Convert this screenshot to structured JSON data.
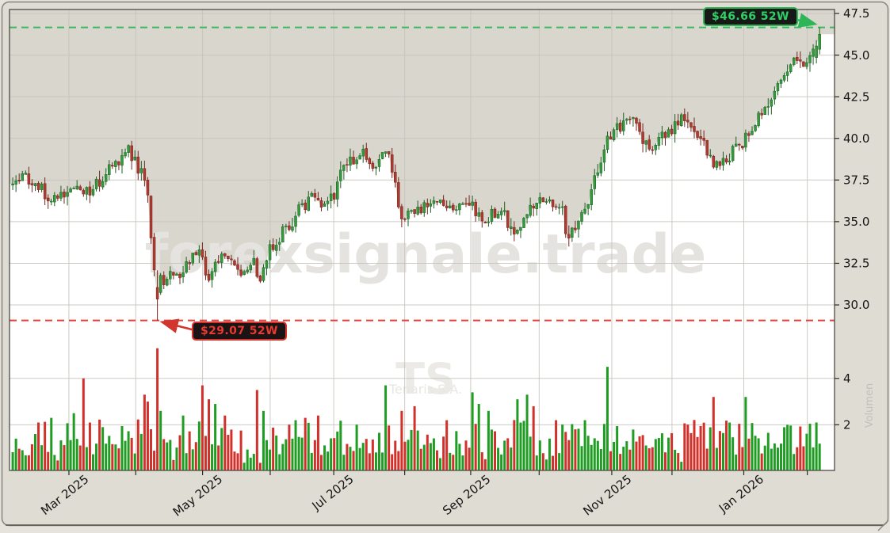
{
  "window": {
    "background": "#dfdcd4",
    "page_background": "#e6e3dc",
    "border_color": "#85837a",
    "plot_border_color": "#4d4b45"
  },
  "watermarks": {
    "site": "forexsignale.trade",
    "logo": "TS",
    "company": "Tenaris S.A."
  },
  "annotations": {
    "high": {
      "label": "$46.66 52W",
      "value": 46.66,
      "line_color": "#3cb95f",
      "text_color": "#2dd066"
    },
    "low": {
      "label": "$29.07 52W",
      "value": 29.07,
      "line_color": "#e2403a",
      "text_color": "#e73a30"
    }
  },
  "axes": {
    "price_ticks": [
      47.5,
      45.0,
      42.5,
      40.0,
      37.5,
      35.0,
      32.5,
      30.0
    ],
    "volume_ticks": [
      4,
      2
    ],
    "volume_axis_label": "Volumen",
    "x_ticks": [
      {
        "t": 0.072,
        "label": "Mar 2025"
      },
      {
        "t": 0.153,
        "label": ""
      },
      {
        "t": 0.234,
        "label": "May 2025"
      },
      {
        "t": 0.316,
        "label": ""
      },
      {
        "t": 0.393,
        "label": "Jul 2025"
      },
      {
        "t": 0.479,
        "label": ""
      },
      {
        "t": 0.559,
        "label": "Sep 2025"
      },
      {
        "t": 0.642,
        "label": ""
      },
      {
        "t": 0.73,
        "label": "Nov 2025"
      },
      {
        "t": 0.803,
        "label": ""
      },
      {
        "t": 0.89,
        "label": "Jan 2026"
      },
      {
        "t": 0.967,
        "label": ""
      }
    ]
  },
  "chart_data": {
    "type": "candlestick+volume",
    "instrument": "Tenaris S.A.",
    "title": "",
    "ylabel_volume": "Volumen",
    "price_ylim": [
      20.0,
      47.74
    ],
    "volume_ylim": [
      0,
      6
    ],
    "grid": true,
    "fifty_two_week": {
      "high": 46.66,
      "low": 29.07
    },
    "n_candles": 252,
    "seed": 42,
    "price_path": [
      [
        0.002,
        37.2
      ],
      [
        0.014,
        37.9
      ],
      [
        0.028,
        37.4
      ],
      [
        0.044,
        36.6
      ],
      [
        0.058,
        36.3
      ],
      [
        0.074,
        37.1
      ],
      [
        0.088,
        36.7
      ],
      [
        0.104,
        37.4
      ],
      [
        0.124,
        38.3
      ],
      [
        0.136,
        39.1
      ],
      [
        0.142,
        39.3
      ],
      [
        0.154,
        38.2
      ],
      [
        0.162,
        37.6
      ],
      [
        0.168,
        35.3
      ],
      [
        0.172,
        32.3
      ],
      [
        0.176,
        30.6
      ],
      [
        0.181,
        31.8
      ],
      [
        0.186,
        30.9
      ],
      [
        0.192,
        32.3
      ],
      [
        0.2,
        31.7
      ],
      [
        0.21,
        32.4
      ],
      [
        0.222,
        33.2
      ],
      [
        0.232,
        32.7
      ],
      [
        0.238,
        30.9
      ],
      [
        0.245,
        32.1
      ],
      [
        0.26,
        32.9
      ],
      [
        0.27,
        32.4
      ],
      [
        0.285,
        31.9
      ],
      [
        0.295,
        32.6
      ],
      [
        0.302,
        31.4
      ],
      [
        0.315,
        33.5
      ],
      [
        0.325,
        34.0
      ],
      [
        0.34,
        35.0
      ],
      [
        0.355,
        36.0
      ],
      [
        0.363,
        36.7
      ],
      [
        0.378,
        35.9
      ],
      [
        0.39,
        36.6
      ],
      [
        0.405,
        38.3
      ],
      [
        0.418,
        38.9
      ],
      [
        0.428,
        39.1
      ],
      [
        0.438,
        38.1
      ],
      [
        0.45,
        38.8
      ],
      [
        0.457,
        39.0
      ],
      [
        0.465,
        37.5
      ],
      [
        0.472,
        34.9
      ],
      [
        0.48,
        35.3
      ],
      [
        0.495,
        35.6
      ],
      [
        0.51,
        36.1
      ],
      [
        0.522,
        36.4
      ],
      [
        0.535,
        35.7
      ],
      [
        0.545,
        36.2
      ],
      [
        0.558,
        35.9
      ],
      [
        0.572,
        34.8
      ],
      [
        0.582,
        35.3
      ],
      [
        0.595,
        35.6
      ],
      [
        0.607,
        34.7
      ],
      [
        0.617,
        34.3
      ],
      [
        0.63,
        35.8
      ],
      [
        0.643,
        36.3
      ],
      [
        0.658,
        36.0
      ],
      [
        0.668,
        35.9
      ],
      [
        0.672,
        34.3
      ],
      [
        0.678,
        34.0
      ],
      [
        0.688,
        35.2
      ],
      [
        0.7,
        36.5
      ],
      [
        0.715,
        38.6
      ],
      [
        0.725,
        40.1
      ],
      [
        0.738,
        40.6
      ],
      [
        0.748,
        41.2
      ],
      [
        0.758,
        40.6
      ],
      [
        0.77,
        39.8
      ],
      [
        0.776,
        39.3
      ],
      [
        0.788,
        40.2
      ],
      [
        0.8,
        40.6
      ],
      [
        0.812,
        41.5
      ],
      [
        0.82,
        41.0
      ],
      [
        0.83,
        40.5
      ],
      [
        0.84,
        39.4
      ],
      [
        0.852,
        38.4
      ],
      [
        0.862,
        38.6
      ],
      [
        0.872,
        39.0
      ],
      [
        0.885,
        39.6
      ],
      [
        0.895,
        40.2
      ],
      [
        0.905,
        41.0
      ],
      [
        0.915,
        42.0
      ],
      [
        0.925,
        42.6
      ],
      [
        0.932,
        43.5
      ],
      [
        0.94,
        44.3
      ],
      [
        0.947,
        45.0
      ],
      [
        0.954,
        44.6
      ],
      [
        0.962,
        44.2
      ],
      [
        0.968,
        44.6
      ],
      [
        0.974,
        45.4
      ],
      [
        0.978,
        46.2
      ],
      [
        0.98,
        46.1
      ]
    ],
    "volume_spikes": [
      [
        0.035,
        2.1
      ],
      [
        0.048,
        2.3
      ],
      [
        0.075,
        2.5
      ],
      [
        0.088,
        4.0
      ],
      [
        0.113,
        1.9
      ],
      [
        0.161,
        3.3
      ],
      [
        0.166,
        3.0
      ],
      [
        0.176,
        5.3
      ],
      [
        0.183,
        2.6
      ],
      [
        0.207,
        2.4
      ],
      [
        0.232,
        3.7
      ],
      [
        0.24,
        3.1
      ],
      [
        0.247,
        2.9
      ],
      [
        0.26,
        2.4
      ],
      [
        0.299,
        3.5
      ],
      [
        0.306,
        2.6
      ],
      [
        0.345,
        2.2
      ],
      [
        0.356,
        2.3
      ],
      [
        0.373,
        2.4
      ],
      [
        0.455,
        3.7
      ],
      [
        0.474,
        2.6
      ],
      [
        0.488,
        2.8
      ],
      [
        0.527,
        2.2
      ],
      [
        0.56,
        3.4
      ],
      [
        0.568,
        2.9
      ],
      [
        0.577,
        2.6
      ],
      [
        0.613,
        3.1
      ],
      [
        0.625,
        3.3
      ],
      [
        0.635,
        2.8
      ],
      [
        0.662,
        2.2
      ],
      [
        0.695,
        2.2
      ],
      [
        0.722,
        4.5
      ],
      [
        0.851,
        3.2
      ],
      [
        0.89,
        3.2
      ],
      [
        0.94,
        2.0
      ],
      [
        0.976,
        2.1
      ]
    ],
    "colors": {
      "up_body": "#359a3c",
      "up_edge": "#1c5e22",
      "down_body": "#ae3a30",
      "down_edge": "#75241d",
      "vol_up": "#1f9d23",
      "vol_down": "#d2302a",
      "plot_bg": "#d9d6ce",
      "under_fill": "#ffffff",
      "grid": "#c6c3ba",
      "watermark_site": "#e4e3df",
      "watermark_logo": "#ebeae6",
      "watermark_company": "#e9e7e2",
      "axis_label_faint": "#c2bfb8"
    }
  }
}
